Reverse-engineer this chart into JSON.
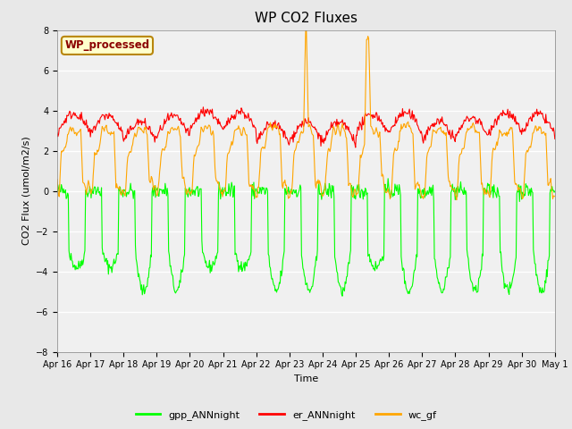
{
  "title": "WP CO2 Fluxes",
  "xlabel": "Time",
  "ylabel": "CO2 Flux (umol/m2/s)",
  "ylim": [
    -8,
    8
  ],
  "yticks": [
    -8,
    -6,
    -4,
    -2,
    0,
    2,
    4,
    6,
    8
  ],
  "background_color": "#e8e8e8",
  "plot_bg_color": "#f0f0f0",
  "legend_label": "WP_processed",
  "legend_label_color": "#8b0000",
  "legend_box_facecolor": "#ffffcc",
  "legend_box_edgecolor": "#b8860b",
  "line_colors": {
    "gpp": "#00ff00",
    "er": "#ff0000",
    "wc": "#ffa500"
  },
  "line_labels": [
    "gpp_ANNnight",
    "er_ANNnight",
    "wc_gf"
  ],
  "n_points": 720,
  "n_days": 15,
  "title_fontsize": 11,
  "axis_label_fontsize": 8,
  "tick_fontsize": 7,
  "legend_fontsize": 8
}
